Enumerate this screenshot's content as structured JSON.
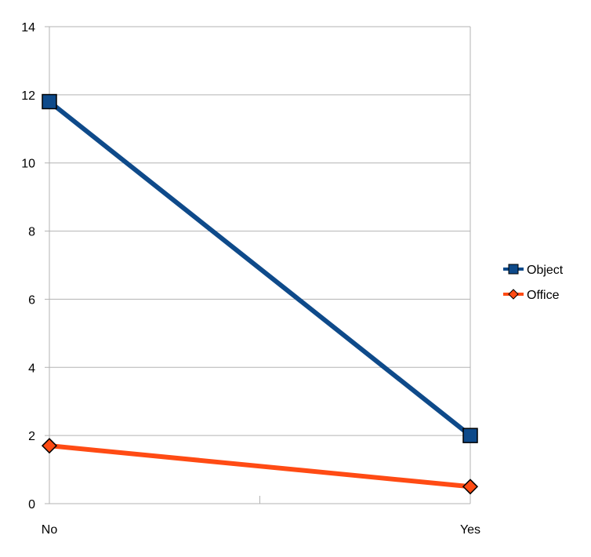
{
  "chart_data": {
    "type": "line",
    "categories": [
      "No",
      "Yes"
    ],
    "series": [
      {
        "name": "Object",
        "values": [
          11.8,
          2.0
        ],
        "color": "#0e4a8a",
        "marker": "square"
      },
      {
        "name": "Office",
        "values": [
          1.7,
          0.5
        ],
        "color": "#ff4b14",
        "marker": "diamond"
      }
    ],
    "ylim": [
      0,
      14
    ],
    "yticks": [
      0,
      2,
      4,
      6,
      8,
      10,
      12,
      14
    ],
    "title": "",
    "xlabel": "",
    "ylabel": "",
    "grid": "horizontal",
    "legend_position": "right"
  }
}
